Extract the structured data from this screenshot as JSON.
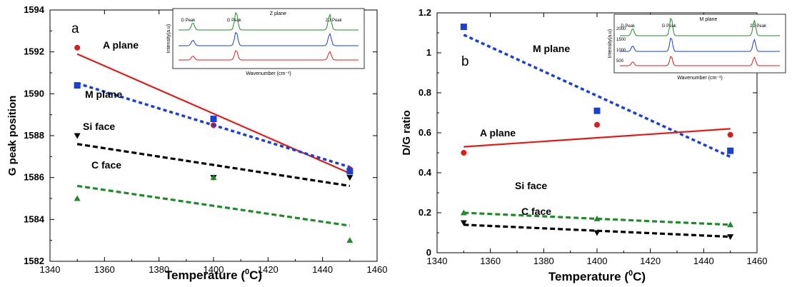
{
  "chart_data": [
    {
      "type": "scatter",
      "panel_label": "a",
      "xlabel_main": "Temperature (",
      "xlabel_sup": "0",
      "xlabel_end": "C)",
      "ylabel": "G peak position",
      "xlim": [
        1340,
        1460
      ],
      "ylim": [
        1582,
        1594
      ],
      "x_ticks": [
        1340,
        1360,
        1380,
        1400,
        1420,
        1440,
        1460
      ],
      "y_ticks": [
        1582,
        1584,
        1586,
        1588,
        1590,
        1592,
        1594
      ],
      "series": [
        {
          "name": "A plane",
          "color": "#dd1c1c",
          "marker": "circle",
          "line": "solid",
          "x": [
            1350,
            1400,
            1450
          ],
          "values": [
            1592.2,
            1588.5,
            1586.4
          ],
          "fit": [
            1591.9,
            1586.2
          ]
        },
        {
          "name": "M plane",
          "color": "#1a3fd1",
          "marker": "square",
          "line": "dotted",
          "x": [
            1350,
            1400,
            1450
          ],
          "values": [
            1590.4,
            1588.8,
            1586.3
          ],
          "fit": [
            1590.5,
            1586.5
          ]
        },
        {
          "name": "Si face",
          "color": "#000000",
          "marker": "triangle-down",
          "line": "dashed",
          "x": [
            1350,
            1400,
            1450
          ],
          "values": [
            1588.0,
            1586.0,
            1586.0
          ],
          "fit": [
            1587.6,
            1585.6
          ]
        },
        {
          "name": "C face",
          "color": "#1f8a2a",
          "marker": "triangle-up",
          "line": "dashed",
          "x": [
            1350,
            1400,
            1450
          ],
          "values": [
            1585.0,
            1586.0,
            1583.0
          ],
          "fit": [
            1585.6,
            1583.7
          ]
        }
      ],
      "inset": {
        "title": "Z plane",
        "ylabel": "Intensity(a.u)",
        "xlabel": "Wavenumber (cm⁻¹)",
        "peaks": [
          "D Peak",
          "G Peak",
          "2D Peak"
        ],
        "colors": [
          "#1f8a2a",
          "#1a3fd1",
          "#dd1c1c"
        ]
      }
    },
    {
      "type": "scatter",
      "panel_label": "b",
      "xlabel_main": "Temperature (",
      "xlabel_sup": "0",
      "xlabel_end": "C)",
      "ylabel": "D/G ratio",
      "xlim": [
        1340,
        1460
      ],
      "ylim": [
        0,
        1.2
      ],
      "x_ticks": [
        1340,
        1360,
        1380,
        1400,
        1420,
        1440,
        1460
      ],
      "y_ticks": [
        "0",
        "0.2",
        "0.4",
        "0.6",
        "0.8",
        "1",
        "1.2"
      ],
      "series": [
        {
          "name": "M plane",
          "color": "#1a3fd1",
          "marker": "square",
          "line": "dotted",
          "x": [
            1350,
            1400,
            1450
          ],
          "values": [
            1.13,
            0.71,
            0.51
          ],
          "fit": [
            1.09,
            0.48
          ]
        },
        {
          "name": "A plane",
          "color": "#dd1c1c",
          "marker": "circle",
          "line": "solid",
          "x": [
            1350,
            1400,
            1450
          ],
          "values": [
            0.5,
            0.64,
            0.59
          ],
          "fit": [
            0.53,
            0.62
          ]
        },
        {
          "name": "Si face",
          "color": "#1f8a2a",
          "marker": "triangle-up",
          "line": "dashed",
          "x": [
            1350,
            1400,
            1450
          ],
          "values": [
            0.2,
            0.17,
            0.14
          ],
          "fit": [
            0.2,
            0.14
          ]
        },
        {
          "name": "C face",
          "color": "#000000",
          "marker": "triangle-down",
          "line": "dashed",
          "x": [
            1350,
            1400,
            1450
          ],
          "values": [
            0.15,
            0.1,
            0.08
          ],
          "fit": [
            0.14,
            0.08
          ]
        }
      ],
      "inset": {
        "title": "M plane",
        "ylabel": "Intensity(a.u)",
        "xlabel": "Wavenumber (cm⁻¹)",
        "peaks": [
          "D Peak",
          "G Peak",
          "2D Peak"
        ],
        "y_ticks": [
          "2000",
          "1500",
          "1000",
          "500"
        ],
        "colors": [
          "#1f8a2a",
          "#1a3fd1",
          "#dd1c1c"
        ]
      }
    }
  ]
}
